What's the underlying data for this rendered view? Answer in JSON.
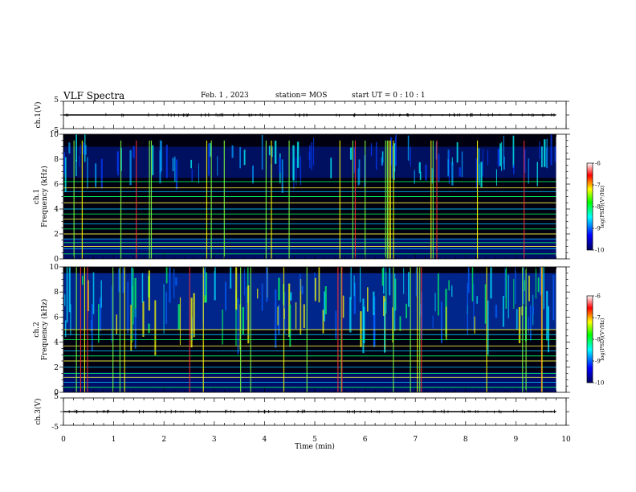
{
  "header": {
    "title": "VLF Spectra",
    "date": "Feb. 1 , 2023",
    "station": "station= MOS",
    "start_ut": "start UT = 0 : 10 : 1"
  },
  "chart_data": [
    {
      "name": "ch1-waveform",
      "type": "line",
      "ylabel": "ch.1(V)",
      "ylim": [
        -5,
        5
      ],
      "yticks": [
        5,
        -5
      ],
      "baseline_value": 0,
      "color": "#000000"
    },
    {
      "name": "ch1-spectrogram",
      "type": "heatmap",
      "ylabel_top": "ch.1",
      "ylabel": "Frequency (kHz)",
      "ylim": [
        0,
        10
      ],
      "yticks": [
        0,
        2,
        4,
        6,
        8,
        10
      ],
      "colorbar": {
        "label": "log(PSD)(V²/Hz)",
        "range": [
          -10,
          -6
        ],
        "ticks": [
          "-6",
          "-7",
          "-8",
          "-9",
          "-10"
        ]
      },
      "emission_band_khz": [
        6.5,
        9
      ],
      "spectral_lines_khz": [
        0.4,
        0.8,
        1.0,
        1.3,
        1.6,
        2.0,
        2.4,
        2.8,
        3.2,
        3.6,
        4.0,
        4.5,
        5.0,
        5.4,
        5.7,
        6.2
      ]
    },
    {
      "name": "ch2-spectrogram",
      "type": "heatmap",
      "ylabel_top": "ch.2",
      "ylabel": "Frequency (kHz)",
      "ylim": [
        0,
        10
      ],
      "yticks": [
        0,
        2,
        4,
        6,
        8,
        10
      ],
      "colorbar": {
        "label": "log(PSD)(V²/Hz)",
        "range": [
          -10,
          -6
        ],
        "ticks": [
          "-6",
          "-7",
          "-8",
          "-9",
          "-10"
        ]
      },
      "emission_band_khz": [
        5,
        9.5
      ],
      "spectral_lines_khz": [
        0.4,
        0.8,
        1.2,
        1.5,
        2.0,
        2.5,
        2.9,
        3.3,
        3.7,
        4.2,
        4.6,
        5.0
      ]
    },
    {
      "name": "ch3-waveform",
      "type": "line",
      "ylabel": "ch.3(V)",
      "ylim": [
        -5,
        5
      ],
      "yticks": [
        5,
        -5
      ],
      "baseline_value": 0,
      "color": "#000000"
    }
  ],
  "x_axis": {
    "label": "Time (min)",
    "xlim": [
      0,
      10
    ],
    "ticks": [
      "0",
      "1",
      "2",
      "3",
      "4",
      "5",
      "6",
      "7",
      "8",
      "9",
      "10"
    ],
    "data_end_min": 9.8
  },
  "colors": {
    "spectrogram_background": "#000010",
    "colormap": [
      "#000060",
      "#0000ff",
      "#00ffff",
      "#00ff00",
      "#ffff00",
      "#ff0000",
      "#ffffff"
    ]
  }
}
